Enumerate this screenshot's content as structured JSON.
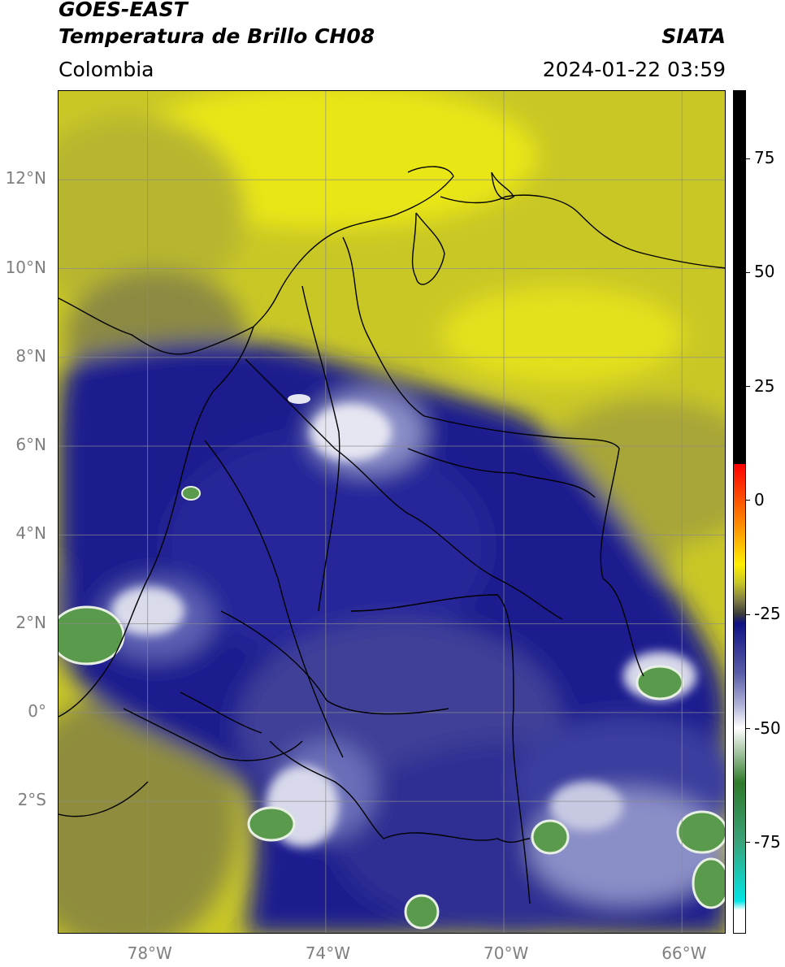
{
  "header": {
    "title_line1": "GOES-EAST",
    "title_line2": "Temperatura de Brillo CH08",
    "brand": "SIATA",
    "region": "Colombia",
    "timestamp": "2024-01-22 03:59"
  },
  "map": {
    "lon_range": [
      -80,
      -65
    ],
    "lat_range": [
      -5,
      14
    ],
    "lat_labels": [
      "12°N",
      "10°N",
      "8°N",
      "6°N",
      "4°N",
      "2°N",
      "0°",
      "2°S"
    ],
    "lat_values": [
      12,
      10,
      8,
      6,
      4,
      2,
      0,
      -2
    ],
    "lon_labels": [
      "78°W",
      "74°W",
      "70°W",
      "66°W"
    ],
    "lon_values": [
      -78,
      -74,
      -70,
      -66
    ],
    "colors": {
      "yellow": "#d6d41f",
      "olive": "#9e9c3a",
      "navy": "#1c1e8f",
      "lavender": "#8b8fc8",
      "white": "#f2f2f6",
      "green": "#5a9a4c",
      "grid": "#8c8c8c"
    }
  },
  "colorbar": {
    "labels": [
      "75",
      "50",
      "25",
      "0",
      "-25",
      "-50",
      "-75"
    ],
    "values": [
      75,
      50,
      25,
      0,
      -25,
      -50,
      -75
    ],
    "vmin": -95,
    "vmax": 90
  }
}
